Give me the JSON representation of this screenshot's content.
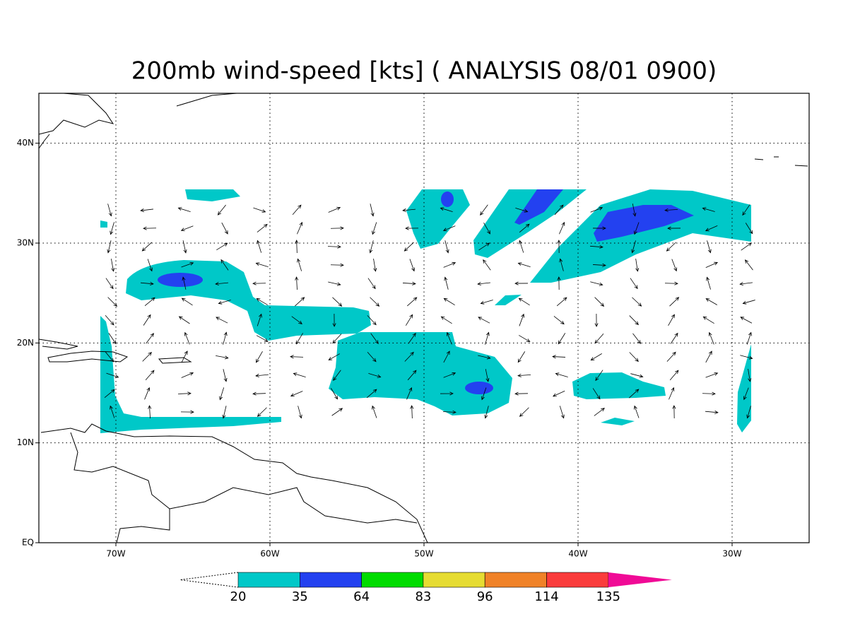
{
  "title": "200mb wind-speed [kts] ( ANALYSIS 08/01 0900)",
  "map": {
    "xlim": [
      -75,
      -25
    ],
    "ylim": [
      0,
      45
    ],
    "xticks": [
      {
        "value": -70,
        "label": "70W"
      },
      {
        "value": -60,
        "label": "60W"
      },
      {
        "value": -50,
        "label": "50W"
      },
      {
        "value": -40,
        "label": "40W"
      },
      {
        "value": -30,
        "label": "30W"
      }
    ],
    "yticks": [
      {
        "value": 0,
        "label": "EQ"
      },
      {
        "value": 10,
        "label": "10N"
      },
      {
        "value": 20,
        "label": "20N"
      },
      {
        "value": 30,
        "label": "30N"
      },
      {
        "value": 40,
        "label": "40N"
      }
    ],
    "grid": true
  },
  "colorbar": {
    "levels": [
      20,
      35,
      64,
      83,
      96,
      114,
      135
    ],
    "colors": [
      "#00c8c8",
      "#2341f0",
      "#00dc00",
      "#e6dc32",
      "#f08228",
      "#fa3c3c",
      "#f00a96"
    ]
  }
}
